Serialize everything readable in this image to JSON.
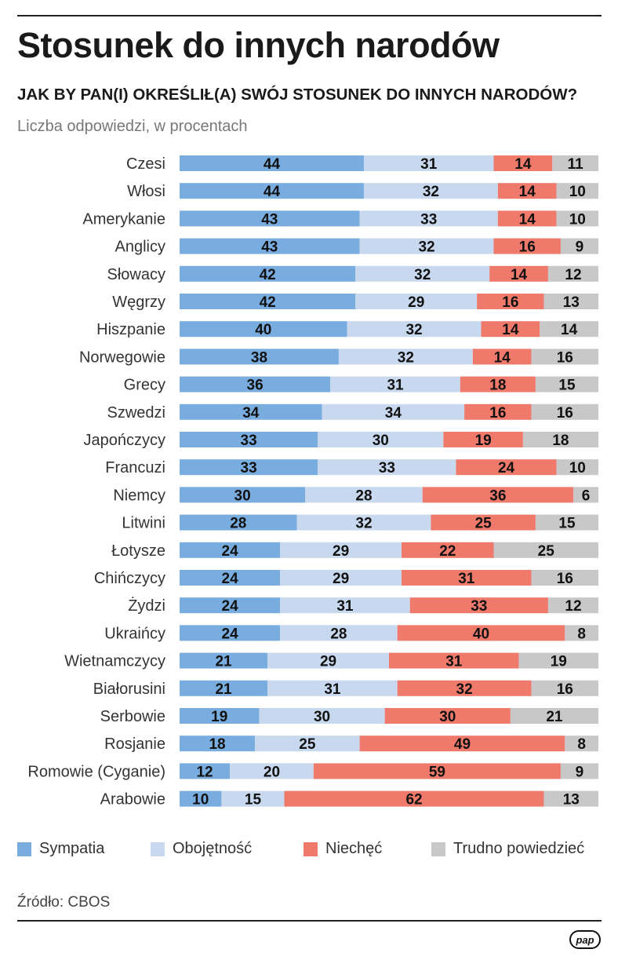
{
  "title": "Stosunek do innych narodów",
  "question": "JAK BY PAN(I) OKREŚLIŁ(A) SWÓJ STOSUNEK DO INNYCH NARODÓW?",
  "subtitle": "Liczba odpowiedzi, w procentach",
  "source": "Źródło: CBOS",
  "logo": "pap",
  "colors": {
    "sympatia": "#7aaddf",
    "obojetnosc": "#c8d9ef",
    "niechec": "#ef7a6b",
    "trudno": "#c8c8c8"
  },
  "legend": [
    {
      "label": "Sympatia",
      "color": "#7aaddf"
    },
    {
      "label": "Obojętność",
      "color": "#c8d9ef"
    },
    {
      "label": "Niechęć",
      "color": "#ef7a6b"
    },
    {
      "label": "Trudno powiedzieć",
      "color": "#c8c8c8"
    }
  ],
  "chart_data": {
    "type": "bar",
    "orientation": "horizontal",
    "stacked": true,
    "title": "Stosunek do innych narodów",
    "xlabel": "",
    "ylabel": "",
    "xlim": [
      0,
      100
    ],
    "categories": [
      "Czesi",
      "Włosi",
      "Amerykanie",
      "Anglicy",
      "Słowacy",
      "Węgrzy",
      "Hiszpanie",
      "Norwegowie",
      "Grecy",
      "Szwedzi",
      "Japończycy",
      "Francuzi",
      "Niemcy",
      "Litwini",
      "Łotysze",
      "Chińczycy",
      "Żydzi",
      "Ukraińcy",
      "Wietnamczycy",
      "Białorusini",
      "Serbowie",
      "Rosjanie",
      "Romowie (Cyganie)",
      "Arabowie"
    ],
    "series": [
      {
        "name": "Sympatia",
        "values": [
          44,
          44,
          43,
          43,
          42,
          42,
          40,
          38,
          36,
          34,
          33,
          33,
          30,
          28,
          24,
          24,
          24,
          24,
          21,
          21,
          19,
          18,
          12,
          10
        ]
      },
      {
        "name": "Obojętność",
        "values": [
          31,
          32,
          33,
          32,
          32,
          29,
          32,
          32,
          31,
          34,
          30,
          33,
          28,
          32,
          29,
          29,
          31,
          28,
          29,
          31,
          30,
          25,
          20,
          15
        ]
      },
      {
        "name": "Niechęć",
        "values": [
          14,
          14,
          14,
          16,
          14,
          16,
          14,
          14,
          18,
          16,
          19,
          24,
          36,
          25,
          22,
          31,
          33,
          40,
          31,
          32,
          30,
          49,
          59,
          62
        ]
      },
      {
        "name": "Trudno powiedzieć",
        "values": [
          11,
          10,
          10,
          9,
          12,
          13,
          14,
          16,
          15,
          16,
          18,
          10,
          6,
          15,
          25,
          16,
          12,
          8,
          19,
          16,
          21,
          8,
          9,
          13
        ]
      }
    ],
    "legend_position": "bottom"
  }
}
